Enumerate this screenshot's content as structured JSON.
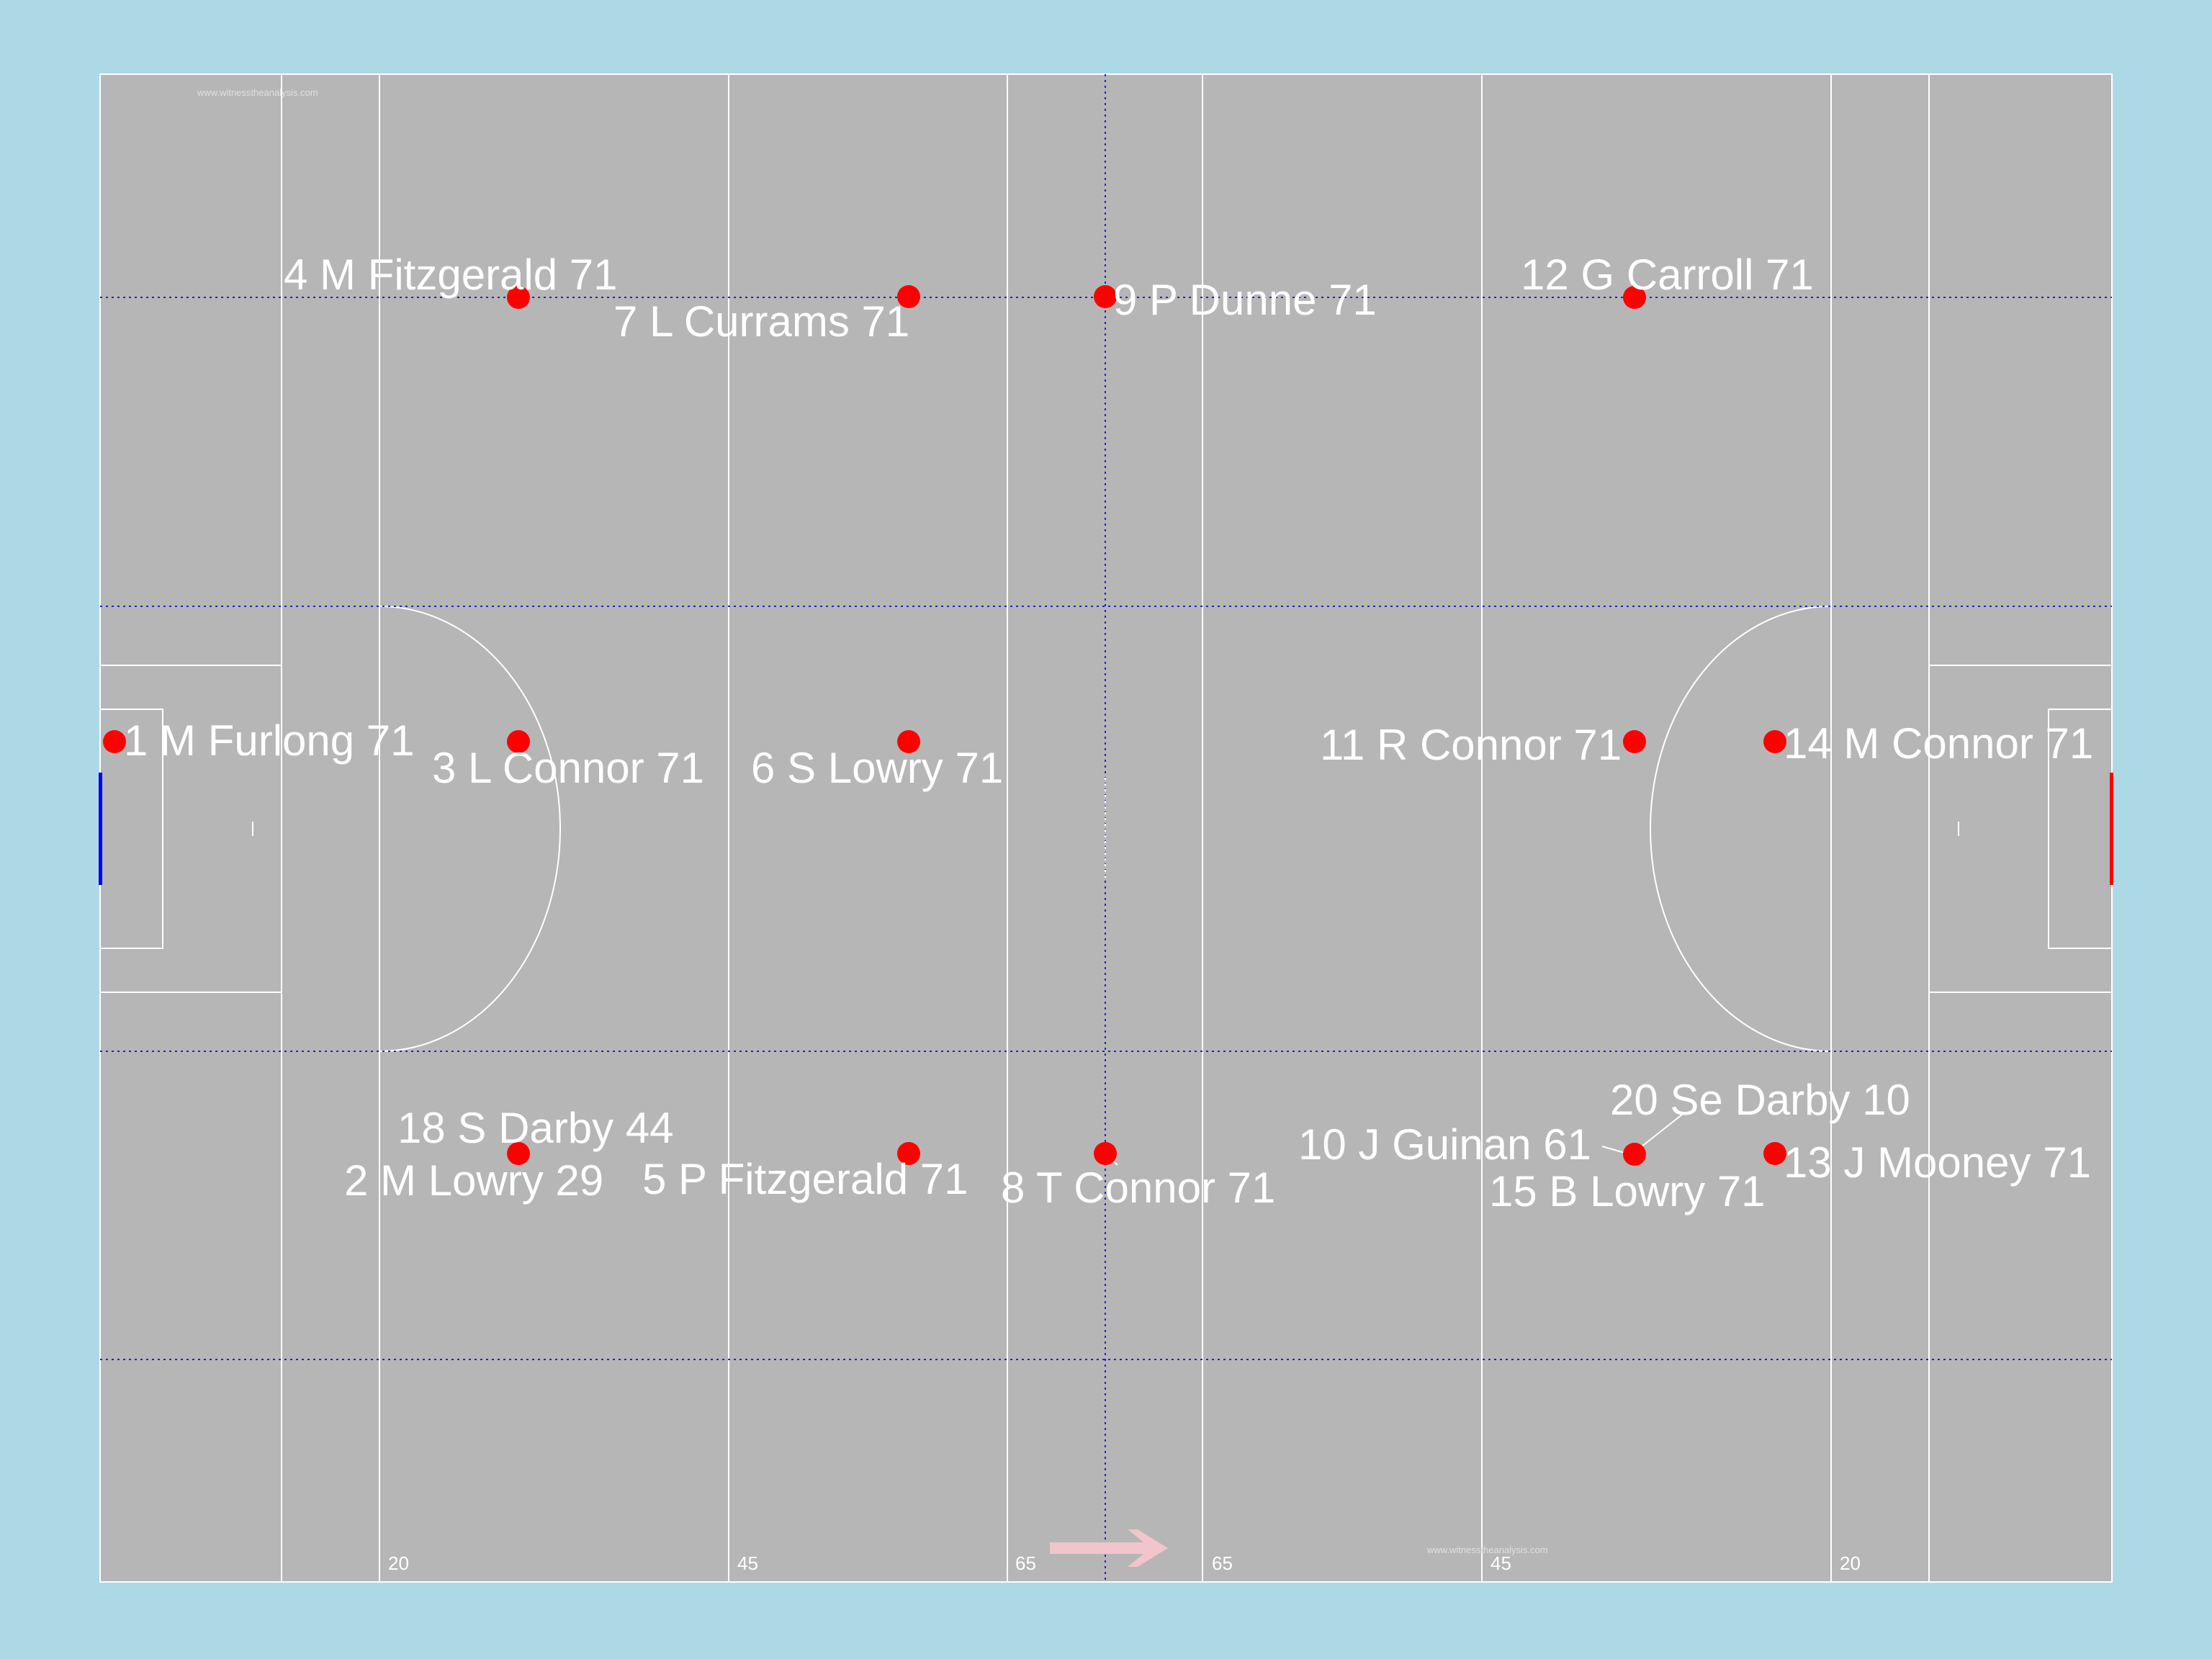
{
  "colors": {
    "background": "#ADD8E6",
    "pitch": "#B6B6B6",
    "lines": "#FFFFFF",
    "guide_lines": "#2222CC",
    "player_dot": "#FF0000",
    "left_goal": "#0000FF",
    "right_goal": "#FF0000",
    "arrow": "#F2C4CB"
  },
  "watermark": "www.witnesstheanalysis.com",
  "yard_markers": [
    "20",
    "45",
    "65",
    "65",
    "45",
    "20"
  ],
  "direction_arrow": "arrow-right-icon",
  "players": [
    {
      "label": "1 M Furlong 71"
    },
    {
      "label": "4 M Fitzgerald 71"
    },
    {
      "label": "7 L Currams 71"
    },
    {
      "label": "9 P Dunne 71"
    },
    {
      "label": "12 G Carroll 71"
    },
    {
      "label": "3 L Connor 71"
    },
    {
      "label": "6 S Lowry 71"
    },
    {
      "label": "11 R Connor 71"
    },
    {
      "label": "14 M Connor 71"
    },
    {
      "label": "18 S Darby 44"
    },
    {
      "label": "2 M Lowry 29"
    },
    {
      "label": "5 P Fitzgerald 71"
    },
    {
      "label": "8 T Connor 71"
    },
    {
      "label": "20 Se Darby 10"
    },
    {
      "label": "10 J Guinan 61"
    },
    {
      "label": "15 B Lowry 71"
    },
    {
      "label": "13 J Mooney 71"
    }
  ]
}
